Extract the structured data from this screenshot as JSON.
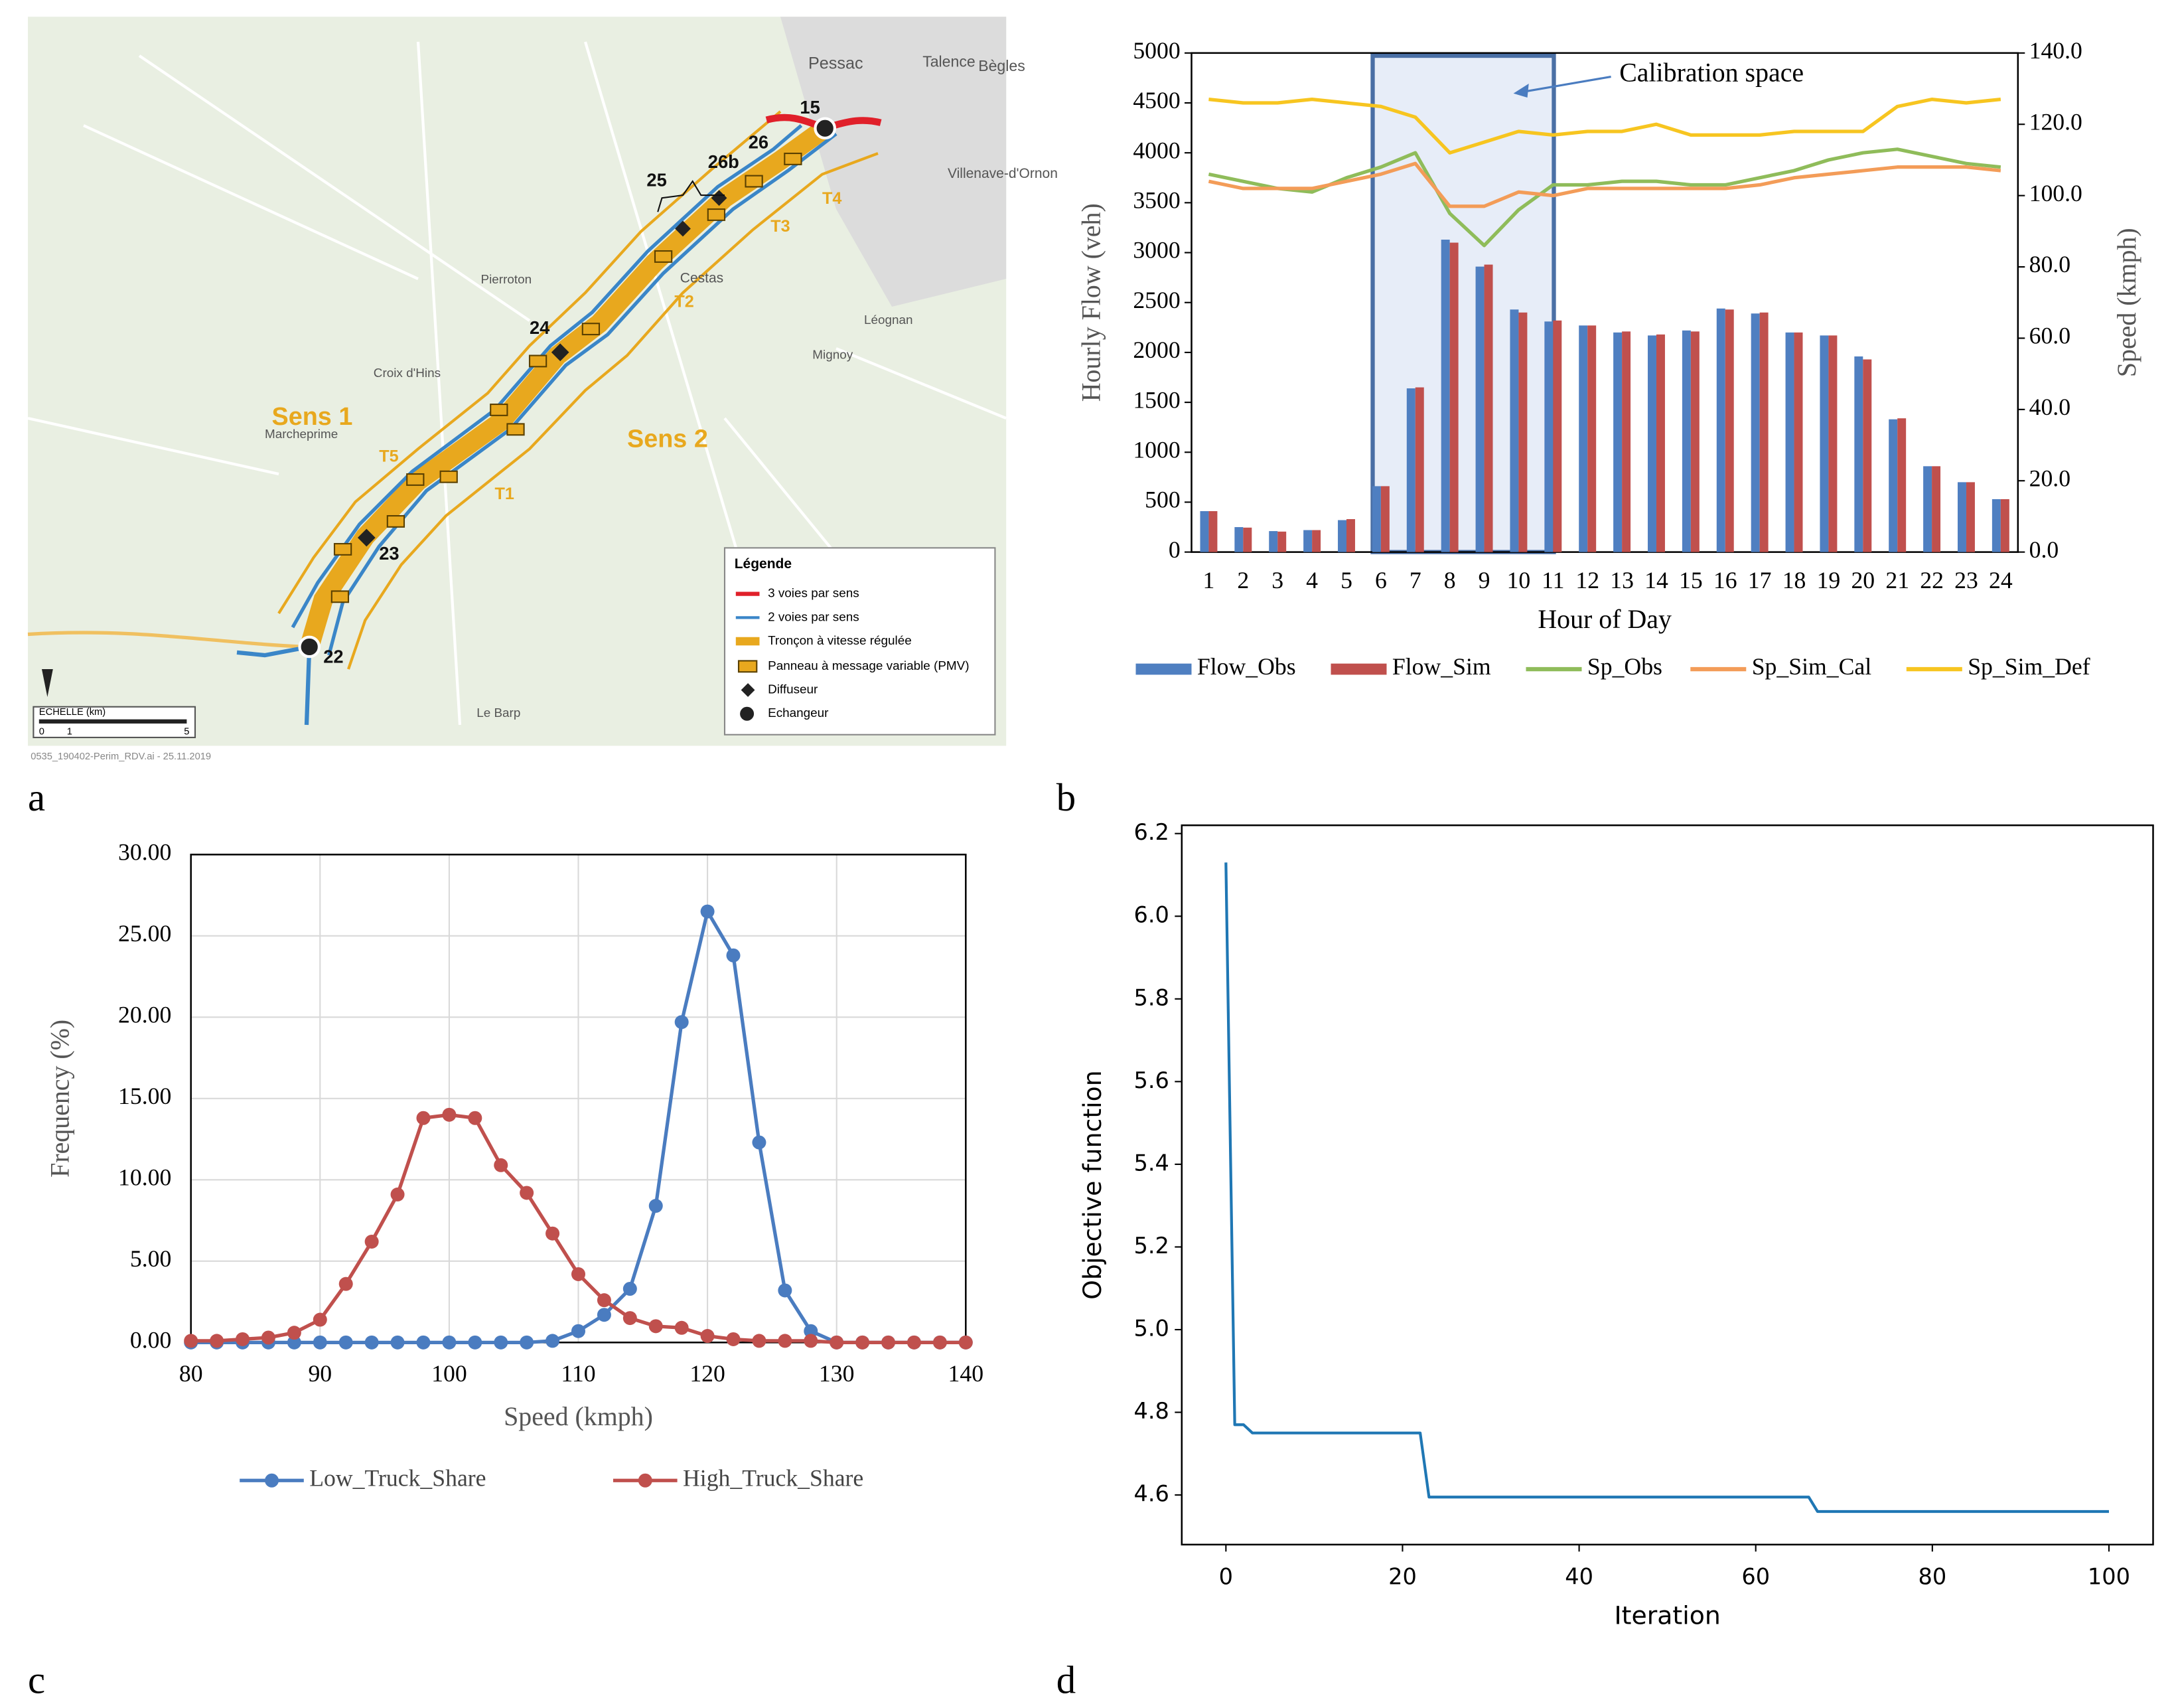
{
  "panel_labels": [
    "a",
    "b",
    "c",
    "d"
  ],
  "map": {
    "labels": [
      "Pessac",
      "Talence",
      "Bègles",
      "Villenave-d'Ornon",
      "Sens 1",
      "Sens 2",
      "T1",
      "T2",
      "T3",
      "T4",
      "T5",
      "15",
      "26",
      "26b",
      "25",
      "24",
      "23",
      "22",
      "Cestas",
      "Léognan",
      "Marcheprime",
      "Croix d'Hins",
      "Le Barp",
      "Pierroton",
      "Mignoy"
    ],
    "legend_title": "Légende",
    "legend": [
      "3 voies par sens",
      "2 voies par sens",
      "Tronçon à vitesse régulée",
      "Panneau à message variable (PMV)",
      "Diffuseur",
      "Echangeur"
    ],
    "scale_title": "ECHELLE (km)",
    "scale_ticks": [
      "0",
      "1",
      "5"
    ],
    "footer": "0535_190402-Perim_RDV.ai  -  25.11.2019"
  },
  "chart_data": [
    {
      "type": "bar",
      "annotation": "Calibration space",
      "x_label": "Hour of Day",
      "y_label": "Hourly Flow (veh)",
      "y2_label": "Speed (kmph)",
      "categories": [
        "1",
        "2",
        "3",
        "4",
        "5",
        "6",
        "7",
        "8",
        "9",
        "10",
        "11",
        "12",
        "13",
        "14",
        "15",
        "16",
        "17",
        "18",
        "19",
        "20",
        "21",
        "22",
        "23",
        "24"
      ],
      "series": [
        {
          "name": "Flow_Obs",
          "color": "#4f7fc1",
          "values": [
            410,
            250,
            210,
            220,
            320,
            660,
            1640,
            3130,
            2860,
            2430,
            2310,
            2270,
            2200,
            2170,
            2220,
            2440,
            2390,
            2200,
            2170,
            1960,
            1330,
            860,
            700,
            530
          ]
        },
        {
          "name": "Flow_Sim",
          "color": "#c0504d",
          "values": [
            410,
            245,
            205,
            220,
            330,
            660,
            1650,
            3100,
            2880,
            2400,
            2320,
            2270,
            2210,
            2180,
            2210,
            2430,
            2400,
            2200,
            2170,
            1930,
            1340,
            860,
            700,
            530
          ]
        },
        {
          "name": "Sp_Obs",
          "color": "#8fbc5a",
          "axis": "y2",
          "values": [
            106,
            104,
            102,
            101,
            105,
            108,
            112,
            95,
            86,
            96,
            103,
            103,
            104,
            104,
            103,
            103,
            105,
            107,
            110,
            112,
            113,
            111,
            109,
            108
          ]
        },
        {
          "name": "Sp_Sim_Cal",
          "color": "#f39c58",
          "axis": "y2",
          "values": [
            104,
            102,
            102,
            102,
            104,
            106,
            109,
            97,
            97,
            101,
            100,
            102,
            102,
            102,
            102,
            102,
            103,
            105,
            106,
            107,
            108,
            108,
            108,
            107
          ]
        },
        {
          "name": "Sp_Sim_Def",
          "color": "#f7c520",
          "axis": "y2",
          "values": [
            127,
            126,
            126,
            127,
            126,
            125,
            122,
            112,
            115,
            118,
            117,
            118,
            118,
            120,
            117,
            117,
            117,
            118,
            118,
            118,
            125,
            127,
            126,
            127
          ]
        }
      ],
      "ylim": [
        0,
        5000
      ],
      "yticks": [
        0,
        500,
        1000,
        1500,
        2000,
        2500,
        3000,
        3500,
        4000,
        4500,
        5000
      ],
      "y2lim": [
        0,
        140
      ],
      "y2ticks": [
        {
          "value": 0,
          "label": "0.0"
        },
        {
          "value": 20,
          "label": "20.0"
        },
        {
          "value": 40,
          "label": "40.0"
        },
        {
          "value": 60,
          "label": "60.0"
        },
        {
          "value": 80,
          "label": "80.0"
        },
        {
          "value": 100,
          "label": "100.0"
        },
        {
          "value": 120,
          "label": "120.0"
        },
        {
          "value": 140,
          "label": "140.0"
        }
      ],
      "legend": "bottom"
    },
    {
      "type": "line",
      "markers": true,
      "grid": true,
      "x_label": "Speed (kmph)",
      "y_label": "Frequency (%)",
      "x": [
        80,
        82,
        84,
        86,
        88,
        90,
        92,
        94,
        96,
        98,
        100,
        102,
        104,
        106,
        108,
        110,
        112,
        114,
        116,
        118,
        120,
        122,
        124,
        126,
        128,
        130,
        132,
        134,
        136,
        138,
        140
      ],
      "series": [
        {
          "name": "Low_Truck_Share",
          "color": "#4a7cc0",
          "values": [
            0,
            0,
            0,
            0,
            0,
            0,
            0,
            0,
            0,
            0,
            0,
            0,
            0,
            0,
            0.1,
            0.7,
            1.7,
            3.3,
            8.4,
            19.7,
            26.5,
            23.8,
            12.3,
            3.2,
            0.7,
            0,
            0,
            0,
            0,
            0,
            0
          ]
        },
        {
          "name": "High_Truck_Share",
          "color": "#c0504d",
          "values": [
            0.1,
            0.1,
            0.2,
            0.3,
            0.6,
            1.4,
            3.6,
            6.2,
            9.1,
            13.8,
            14.0,
            13.8,
            10.9,
            9.2,
            6.7,
            4.2,
            2.6,
            1.5,
            1.0,
            0.9,
            0.4,
            0.2,
            0.1,
            0.1,
            0.1,
            0,
            0,
            0,
            0,
            0,
            0
          ]
        }
      ],
      "xlim": [
        80,
        140
      ],
      "xticks": [
        80,
        90,
        100,
        110,
        120,
        130,
        140
      ],
      "ylim": [
        0,
        30
      ],
      "yticks": [
        {
          "value": 0,
          "label": "0.00"
        },
        {
          "value": 5,
          "label": "5.00"
        },
        {
          "value": 10,
          "label": "10.00"
        },
        {
          "value": 15,
          "label": "15.00"
        },
        {
          "value": 20,
          "label": "20.00"
        },
        {
          "value": 25,
          "label": "25.00"
        },
        {
          "value": 30,
          "label": "30.00"
        }
      ],
      "legend": "bottom"
    },
    {
      "type": "line",
      "markers": false,
      "grid": false,
      "x_label": "Iteration",
      "y_label": "Objective function",
      "x": [
        0,
        1,
        2,
        3,
        22,
        23,
        66,
        67,
        100
      ],
      "series": [
        {
          "color": "#1f77b4",
          "values": [
            6.13,
            4.77,
            4.77,
            4.75,
            4.75,
            4.595,
            4.595,
            4.56,
            4.56
          ]
        }
      ],
      "xlim": [
        -5,
        105
      ],
      "xticks": [
        0,
        20,
        40,
        60,
        80,
        100
      ],
      "ylim": [
        4.48,
        6.22
      ],
      "yticks": [
        4.6,
        4.8,
        {
          "value": 5,
          "label": "5.0"
        },
        5.2,
        5.4,
        5.6,
        5.8,
        {
          "value": 6,
          "label": "6.0"
        },
        6.2
      ]
    }
  ]
}
